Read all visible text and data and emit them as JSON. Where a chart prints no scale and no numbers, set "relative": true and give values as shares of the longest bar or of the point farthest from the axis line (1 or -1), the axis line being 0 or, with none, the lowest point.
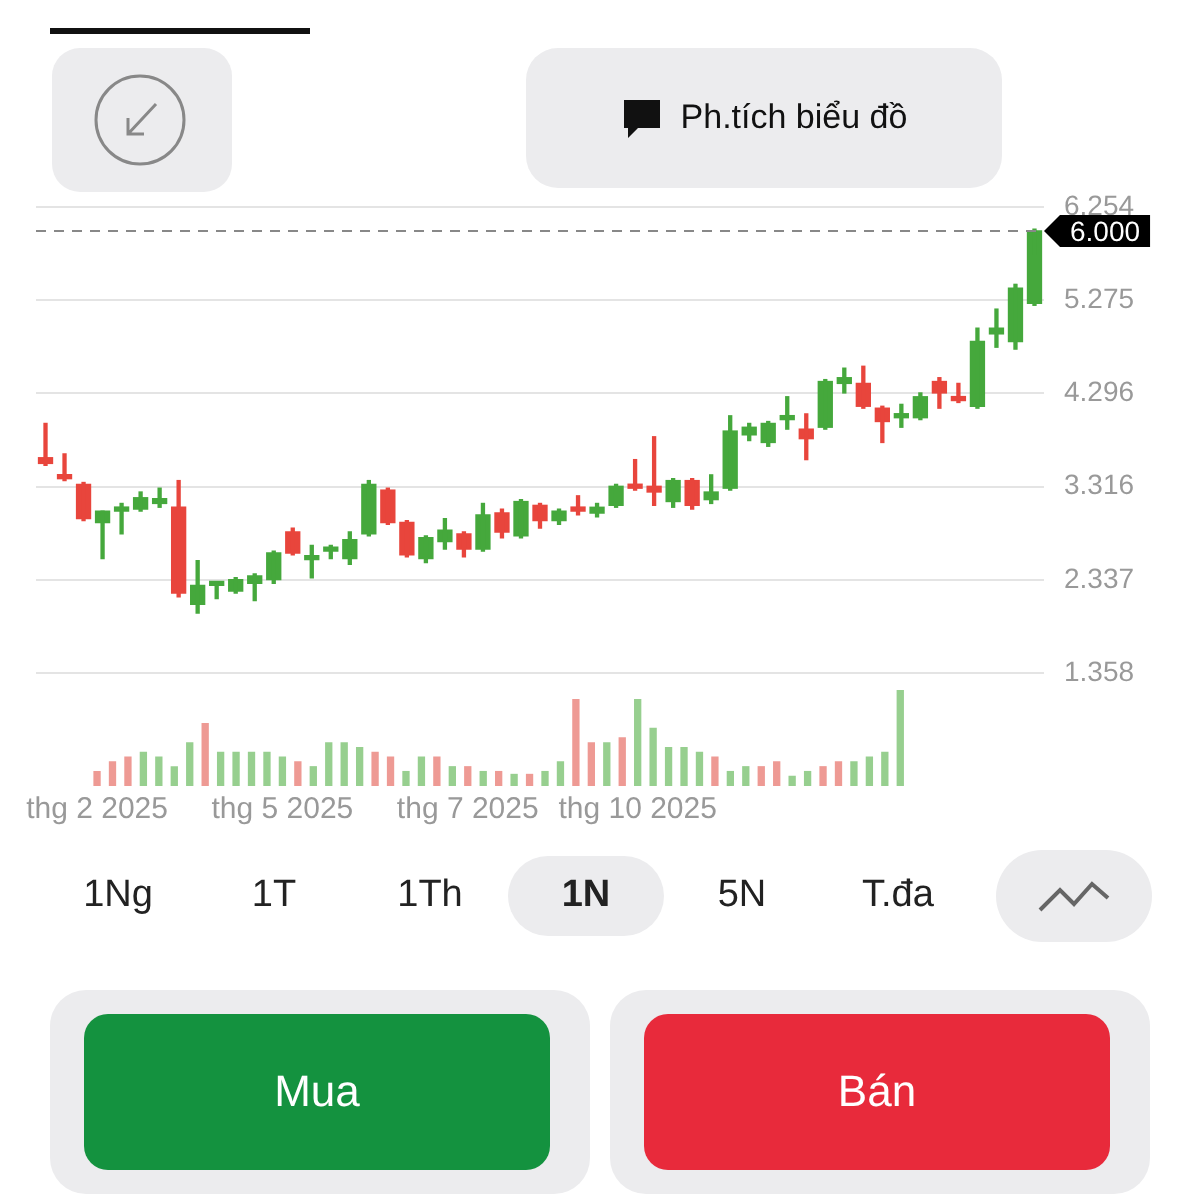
{
  "chart_data": [
    {
      "type": "candlestick",
      "categories": [
        null,
        null,
        null,
        null,
        null,
        null,
        null,
        null,
        null,
        null,
        null,
        null,
        null,
        null,
        null,
        null,
        null,
        null,
        null,
        null,
        null,
        null,
        null,
        null,
        null,
        null,
        null,
        null,
        null,
        null,
        null,
        null,
        null,
        null,
        null,
        null,
        null,
        null,
        null,
        null,
        null,
        null,
        null,
        null,
        null,
        null,
        null,
        null,
        null,
        null,
        null,
        null,
        null
      ],
      "ohlc": [
        [
          3.62,
          3.98,
          3.54,
          3.56
        ],
        [
          3.44,
          3.66,
          3.38,
          3.4
        ],
        [
          3.34,
          3.36,
          2.96,
          2.98
        ],
        [
          2.94,
          3.06,
          2.56,
          3.06
        ],
        [
          3.06,
          3.14,
          2.82,
          3.08
        ],
        [
          3.08,
          3.26,
          3.06,
          3.2
        ],
        [
          3.14,
          3.3,
          3.1,
          3.19
        ],
        [
          3.1,
          3.38,
          2.16,
          2.2
        ],
        [
          2.08,
          2.54,
          1.99,
          2.28
        ],
        [
          2.28,
          2.32,
          2.14,
          2.3
        ],
        [
          2.22,
          2.36,
          2.2,
          2.34
        ],
        [
          2.3,
          2.4,
          2.12,
          2.38
        ],
        [
          2.34,
          2.64,
          2.3,
          2.62
        ],
        [
          2.84,
          2.88,
          2.6,
          2.62
        ],
        [
          2.55,
          2.7,
          2.36,
          2.57
        ],
        [
          2.64,
          2.7,
          2.56,
          2.66
        ],
        [
          2.56,
          2.84,
          2.5,
          2.76
        ],
        [
          2.82,
          3.38,
          2.8,
          3.34
        ],
        [
          3.28,
          3.3,
          2.92,
          2.94
        ],
        [
          2.94,
          2.96,
          2.58,
          2.6
        ],
        [
          2.56,
          2.8,
          2.52,
          2.78
        ],
        [
          2.74,
          2.98,
          2.66,
          2.86
        ],
        [
          2.82,
          2.84,
          2.58,
          2.66
        ],
        [
          2.66,
          3.14,
          2.64,
          3.02
        ],
        [
          3.04,
          3.08,
          2.78,
          2.84
        ],
        [
          2.8,
          3.18,
          2.78,
          3.16
        ],
        [
          3.12,
          3.14,
          2.88,
          2.96
        ],
        [
          2.96,
          3.08,
          2.92,
          3.06
        ],
        [
          3.1,
          3.22,
          3.02,
          3.06
        ],
        [
          3.04,
          3.14,
          3.0,
          3.1
        ],
        [
          3.12,
          3.34,
          3.1,
          3.32
        ],
        [
          3.34,
          3.6,
          3.28,
          3.3
        ],
        [
          3.32,
          3.84,
          3.12,
          3.26
        ],
        [
          3.16,
          3.4,
          3.1,
          3.38
        ],
        [
          3.38,
          3.4,
          3.08,
          3.12
        ],
        [
          3.18,
          3.44,
          3.14,
          3.26
        ],
        [
          3.3,
          4.06,
          3.28,
          3.9
        ],
        [
          3.86,
          3.98,
          3.8,
          3.94
        ],
        [
          3.78,
          4.0,
          3.74,
          3.98
        ],
        [
          4.02,
          4.26,
          3.92,
          4.04
        ],
        [
          3.92,
          4.08,
          3.6,
          3.82
        ],
        [
          3.94,
          4.44,
          3.92,
          4.42
        ],
        [
          4.4,
          4.56,
          4.3,
          4.46
        ],
        [
          4.4,
          4.58,
          4.14,
          4.16
        ],
        [
          4.14,
          4.16,
          3.78,
          4.0
        ],
        [
          4.04,
          4.18,
          3.94,
          4.06
        ],
        [
          4.04,
          4.3,
          4.02,
          4.26
        ],
        [
          4.42,
          4.46,
          4.14,
          4.3
        ],
        [
          4.24,
          4.4,
          4.2,
          4.22
        ],
        [
          4.16,
          4.98,
          4.14,
          4.84
        ],
        [
          4.92,
          5.18,
          4.78,
          4.98
        ],
        [
          4.84,
          5.44,
          4.76,
          5.4
        ],
        [
          5.24,
          6.02,
          5.22,
          6.0
        ]
      ],
      "colors": [
        "#e8453c",
        "#e8453c",
        "#e8453c",
        "#45a83c",
        "#45a83c",
        "#45a83c",
        "#45a83c",
        "#e8453c",
        "#45a83c",
        "#45a83c",
        "#45a83c",
        "#45a83c",
        "#45a83c",
        "#e8453c",
        "#45a83c",
        "#45a83c",
        "#45a83c",
        "#45a83c",
        "#e8453c",
        "#e8453c",
        "#45a83c",
        "#45a83c",
        "#e8453c",
        "#45a83c",
        "#e8453c",
        "#45a83c",
        "#e8453c",
        "#45a83c",
        "#e8453c",
        "#45a83c",
        "#45a83c",
        "#e8453c",
        "#e8453c",
        "#45a83c",
        "#e8453c",
        "#45a83c",
        "#45a83c",
        "#45a83c",
        "#45a83c",
        "#45a83c",
        "#e8453c",
        "#45a83c",
        "#45a83c",
        "#e8453c",
        "#e8453c",
        "#45a83c",
        "#45a83c",
        "#e8453c",
        "#e8453c",
        "#45a83c",
        "#45a83c",
        "#45a83c",
        "#45a83c"
      ],
      "ylim": [
        1.358,
        6.254
      ],
      "yticks": [
        1.358,
        2.337,
        3.316,
        4.296,
        5.275,
        6.254
      ],
      "grid": "y",
      "tick_labels": "y",
      "ref_lines": [
        {
          "axis": "y",
          "value": 6.0,
          "label": "6.000",
          "line_style": "dashed",
          "color": "#888888"
        }
      ]
    },
    {
      "type": "bar",
      "relative": true,
      "tick_labels": "x",
      "categories": [
        "thg 2 2025",
        null,
        null,
        null,
        null,
        null,
        null,
        null,
        null,
        null,
        null,
        null,
        "thg 5 2025",
        null,
        null,
        null,
        null,
        null,
        null,
        null,
        null,
        null,
        null,
        null,
        "thg 7 2025",
        null,
        null,
        null,
        null,
        null,
        null,
        null,
        null,
        null,
        null,
        "thg 10 2025",
        null,
        null,
        null,
        null,
        null,
        null,
        null,
        null,
        null,
        null,
        null,
        null,
        null,
        null,
        null,
        null,
        null
      ],
      "values": [
        0.15,
        0.25,
        0.3,
        0.35,
        0.3,
        0.2,
        0.45,
        0.65,
        0.35,
        0.35,
        0.35,
        0.35,
        0.3,
        0.25,
        0.2,
        0.45,
        0.45,
        0.4,
        0.35,
        0.3,
        0.15,
        0.3,
        0.3,
        0.2,
        0.2,
        0.15,
        0.15,
        0.12,
        0.12,
        0.15,
        0.25,
        0.9,
        0.45,
        0.45,
        0.5,
        0.9,
        0.6,
        0.4,
        0.4,
        0.35,
        0.3,
        0.15,
        0.2,
        0.2,
        0.25,
        0.1,
        0.15,
        0.2,
        0.25,
        0.25,
        0.3,
        0.35,
        1
      ],
      "colors": [
        "#ee9a94",
        "#ee9a94",
        "#ee9a94",
        "#97cf8f",
        "#97cf8f",
        "#97cf8f",
        "#97cf8f",
        "#ee9a94",
        "#97cf8f",
        "#97cf8f",
        "#97cf8f",
        "#97cf8f",
        "#97cf8f",
        "#ee9a94",
        "#97cf8f",
        "#97cf8f",
        "#97cf8f",
        "#97cf8f",
        "#ee9a94",
        "#ee9a94",
        "#97cf8f",
        "#97cf8f",
        "#ee9a94",
        "#97cf8f",
        "#ee9a94",
        "#97cf8f",
        "#ee9a94",
        "#97cf8f",
        "#ee9a94",
        "#97cf8f",
        "#97cf8f",
        "#ee9a94",
        "#ee9a94",
        "#97cf8f",
        "#ee9a94",
        "#97cf8f",
        "#97cf8f",
        "#97cf8f",
        "#97cf8f",
        "#97cf8f",
        "#ee9a94",
        "#97cf8f",
        "#97cf8f",
        "#ee9a94",
        "#ee9a94",
        "#97cf8f",
        "#97cf8f",
        "#ee9a94",
        "#ee9a94",
        "#97cf8f",
        "#97cf8f",
        "#97cf8f",
        "#97cf8f"
      ]
    },
    {
      "type": "other",
      "categories": [
        "1Ng",
        "1T",
        "1Th",
        "1N",
        "5N",
        "T.đa"
      ],
      "annotations": [
        "Ph.tích biểu đồ",
        "Mua",
        "Bán"
      ]
    }
  ]
}
